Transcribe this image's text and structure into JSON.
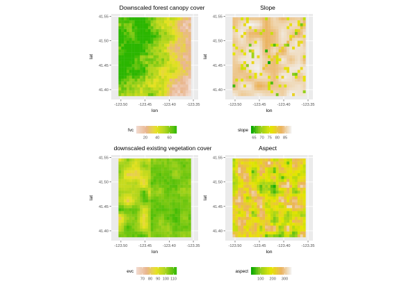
{
  "figure": {
    "panels": [
      {
        "id": "fvc",
        "title": "Downscaled forest canopy cover"
      },
      {
        "id": "slope",
        "title": "Slope"
      },
      {
        "id": "evc",
        "title": "downscaled existing vegetation cover"
      },
      {
        "id": "aspect",
        "title": "Aspect"
      }
    ]
  },
  "chart_data": [
    {
      "type": "heatmap",
      "title": "Downscaled forest canopy cover",
      "xlabel": "lon",
      "ylabel": "lat",
      "xlim": [
        -123.52,
        -123.34
      ],
      "ylim": [
        41.38,
        41.555
      ],
      "x_ticks": [
        "-123.50",
        "-123.45",
        "-123.40",
        "-123.35"
      ],
      "y_ticks": [
        "41.55",
        "41.50",
        "41.45",
        "41.40"
      ],
      "x_tick_values": [
        -123.5,
        -123.45,
        -123.4,
        -123.35
      ],
      "y_tick_values": [
        41.55,
        41.5,
        41.45,
        41.4
      ],
      "grid": true,
      "legend": {
        "title": "fvc",
        "position": "bottom",
        "labels": [
          "20",
          "40",
          "60"
        ],
        "values": [
          20,
          40,
          60
        ],
        "range": [
          5,
          72
        ],
        "colors": [
          "#f2ddd2",
          "#e9b58f",
          "#e6e221",
          "#a2d21c",
          "#2bb600"
        ]
      },
      "description": "Dense green canopy (values ~60-70) across west/north-west, grading to tan/pink low cover (~10-30) in the east"
    },
    {
      "type": "heatmap",
      "title": "Slope",
      "xlabel": "lon",
      "ylabel": "lat",
      "xlim": [
        -123.52,
        -123.34
      ],
      "ylim": [
        41.38,
        41.555
      ],
      "x_ticks": [
        "-123.50",
        "-123.45",
        "-123.40",
        "-123.35"
      ],
      "y_ticks": [
        "41.55",
        "41.50",
        "41.45",
        "41.40"
      ],
      "x_tick_values": [
        -123.5,
        -123.45,
        -123.4,
        -123.35
      ],
      "y_tick_values": [
        41.55,
        41.5,
        41.45,
        41.4
      ],
      "grid": true,
      "legend": {
        "title": "slope",
        "position": "bottom",
        "labels": [
          "65",
          "70",
          "75",
          "80",
          "85"
        ],
        "values": [
          65,
          70,
          75,
          80,
          85
        ],
        "range": [
          63,
          89
        ],
        "colors": [
          "#00a600",
          "#9bd11c",
          "#e6e600",
          "#ebb25e",
          "#f2f2f2"
        ]
      },
      "description": "Mostly light pink/white (high values ~85-89) with scattered tan and occasional green/yellow cells"
    },
    {
      "type": "heatmap",
      "title": "downscaled existing vegetation cover",
      "xlabel": "lon",
      "ylabel": "lat",
      "xlim": [
        -123.52,
        -123.34
      ],
      "ylim": [
        41.38,
        41.555
      ],
      "x_ticks": [
        "-123.50",
        "-123.45",
        "-123.40",
        "-123.35"
      ],
      "y_ticks": [
        "41.55",
        "41.50",
        "41.45",
        "41.40"
      ],
      "x_tick_values": [
        -123.5,
        -123.45,
        -123.4,
        -123.35
      ],
      "y_tick_values": [
        41.55,
        41.5,
        41.45,
        41.4
      ],
      "grid": true,
      "legend": {
        "title": "evc",
        "position": "bottom",
        "labels": [
          "70",
          "80",
          "90",
          "100",
          "110"
        ],
        "values": [
          70,
          80,
          90,
          100,
          110
        ],
        "range": [
          62,
          114
        ],
        "colors": [
          "#f2ddd2",
          "#e9b58f",
          "#e6e221",
          "#a2d21c",
          "#2bb600"
        ]
      },
      "description": "Predominantly green (~105-112) with yellow-green patches in the west"
    },
    {
      "type": "heatmap",
      "title": "Aspect",
      "xlabel": "lon",
      "ylabel": "lat",
      "xlim": [
        -123.52,
        -123.34
      ],
      "ylim": [
        41.38,
        41.555
      ],
      "x_ticks": [
        "-123.50",
        "-123.45",
        "-123.40",
        "-123.35"
      ],
      "y_ticks": [
        "41.55",
        "41.50",
        "41.45",
        "41.40"
      ],
      "x_tick_values": [
        -123.5,
        -123.45,
        -123.4,
        -123.35
      ],
      "y_tick_values": [
        41.55,
        41.5,
        41.45,
        41.4
      ],
      "grid": true,
      "legend": {
        "title": "aspect",
        "position": "bottom",
        "labels": [
          "100",
          "200",
          "300"
        ],
        "values": [
          100,
          200,
          300
        ],
        "range": [
          20,
          355
        ],
        "colors": [
          "#00a600",
          "#9bd11c",
          "#e6e600",
          "#ebb25e",
          "#f2f2f2"
        ]
      },
      "description": "Mixed patchwork of tan, yellow, green and light pink cells"
    }
  ]
}
